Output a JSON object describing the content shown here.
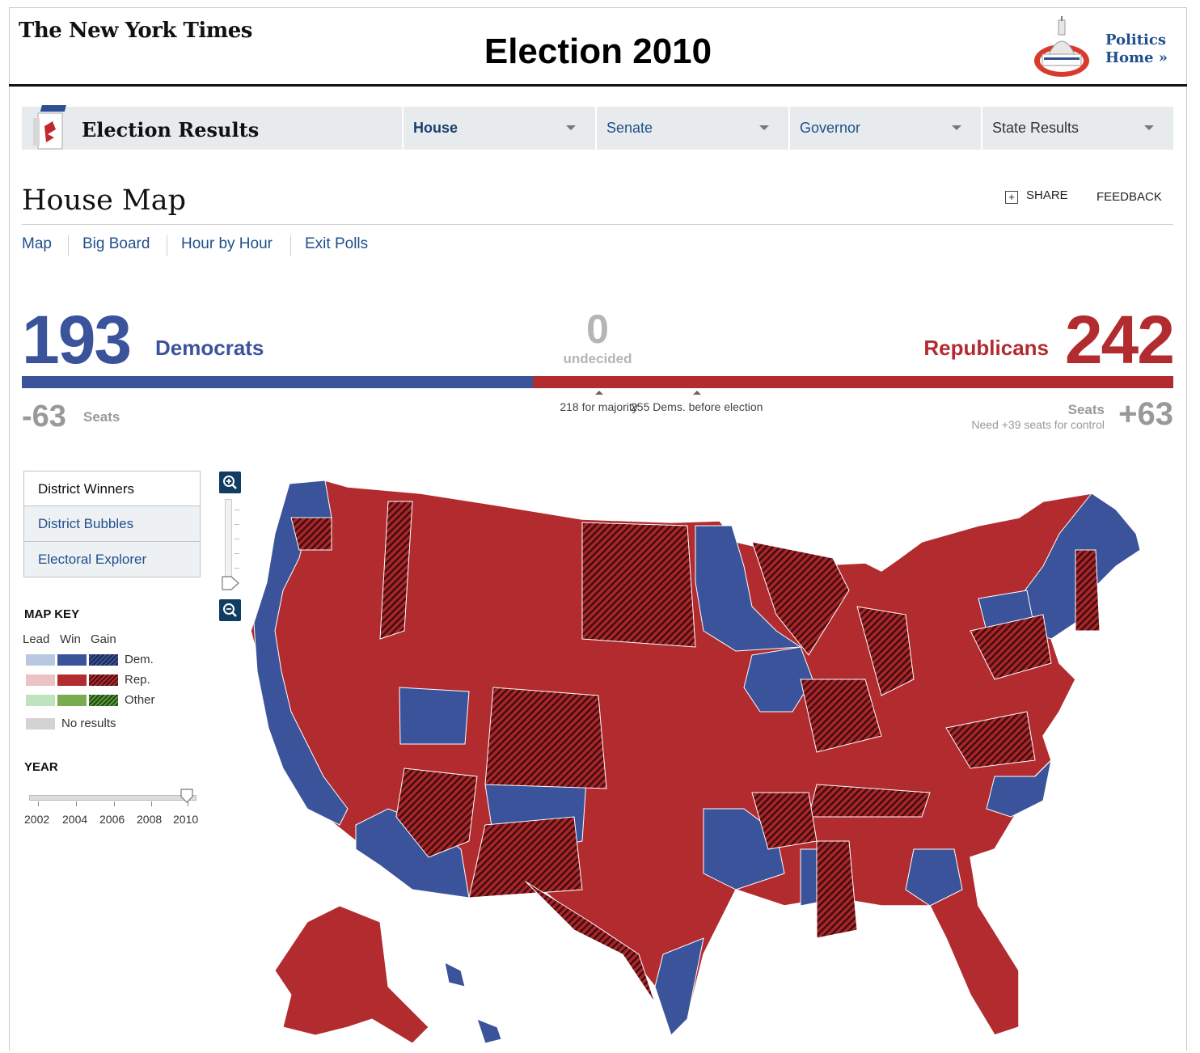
{
  "masthead": {
    "logo_text": "The New York Times",
    "edition_title": "Election 2010",
    "politics_link_line1": "Politics",
    "politics_link_line2": "Home »"
  },
  "nav": {
    "logo_title": "Election Results",
    "tabs": [
      {
        "label": "House",
        "active": true
      },
      {
        "label": "Senate",
        "active": false
      },
      {
        "label": "Governor",
        "active": false
      },
      {
        "label": "State Results",
        "active": false
      }
    ]
  },
  "page": {
    "title": "House Map",
    "share_label": "SHARE",
    "feedback_label": "FEEDBACK",
    "subnav": [
      "Map",
      "Big Board",
      "Hour by Hour",
      "Exit Polls"
    ]
  },
  "scoreboard": {
    "dem_count": "193",
    "dem_label": "Democrats",
    "undecided_count": "0",
    "undecided_label": "undecided",
    "rep_label": "Republicans",
    "rep_count": "242",
    "dem_share": 0.4437,
    "majority_marker_fraction": 0.5011,
    "before_marker_fraction": 0.5862,
    "majority_text": "218 for majority",
    "before_text": "255 Dems. before election",
    "dem_change": "-63",
    "dem_seats_label": "Seats",
    "rep_seats_label": "Seats",
    "rep_need": "Need +39 seats for control",
    "rep_change": "+63"
  },
  "views": [
    "District Winners",
    "District Bubbles",
    "Electoral Explorer"
  ],
  "map_key": {
    "title": "MAP KEY",
    "columns": [
      "Lead",
      "Win",
      "Gain"
    ],
    "rows": [
      {
        "label": "Dem.",
        "lead": "#b9c7e2",
        "win": "#3a539b"
      },
      {
        "label": "Rep.",
        "lead": "#ecc3c3",
        "win": "#b22b2f"
      },
      {
        "label": "Other",
        "lead": "#bfe3bd",
        "win": "#7aab4e"
      }
    ],
    "no_results_label": "No results",
    "no_results_color": "#d3d3d3"
  },
  "year_slider": {
    "title": "YEAR",
    "years": [
      "2002",
      "2004",
      "2006",
      "2008",
      "2010"
    ],
    "selected": "2010"
  },
  "colors": {
    "dem": "#3a539b",
    "rep": "#b22b2f",
    "nav_link": "#1f4f8d",
    "zoom_button": "#123d62"
  }
}
